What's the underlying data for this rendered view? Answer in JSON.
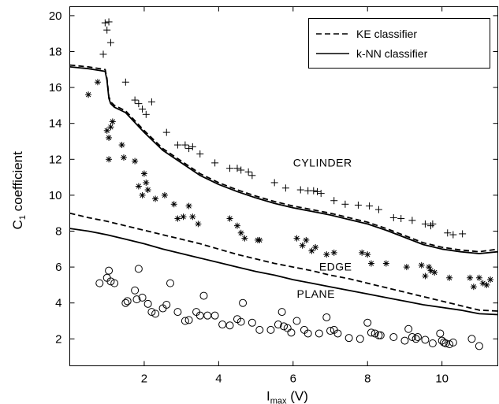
{
  "chart_data": {
    "type": "scatter",
    "xlabel": "I",
    "xlabel_sub": "max",
    "xlabel_unit": " (V)",
    "ylabel": "C",
    "ylabel_sub": "1",
    "ylabel_rest": " coefficient",
    "xlim": [
      0,
      11.5
    ],
    "ylim": [
      0.5,
      20.5
    ],
    "xticks": [
      2,
      4,
      6,
      8,
      10
    ],
    "yticks": [
      2,
      4,
      6,
      8,
      10,
      12,
      14,
      16,
      18,
      20
    ],
    "grid": false,
    "legend_position": "top-right",
    "legend": [
      {
        "label": "KE classifier",
        "style": "dashed"
      },
      {
        "label": "k-NN classifier",
        "style": "solid"
      }
    ],
    "annotations": [
      {
        "text": "CYLINDER",
        "x": 6.0,
        "y": 11.6
      },
      {
        "text": "EDGE",
        "x": 6.7,
        "y": 5.8
      },
      {
        "text": "PLANE",
        "x": 6.1,
        "y": 4.3
      }
    ],
    "series": [
      {
        "name": "KE classifier",
        "kind": "line",
        "style": "dashed",
        "x": [
          0,
          0.5,
          1.0,
          1.5,
          2.0,
          2.5,
          3.0,
          3.5,
          4.0,
          4.5,
          5.0,
          5.5,
          6.0,
          6.5,
          7.0,
          7.5,
          8.0,
          8.5,
          9.0,
          9.5,
          10.0,
          10.5,
          11.0,
          11.5
        ],
        "y": [
          9.0,
          8.75,
          8.55,
          8.3,
          8.05,
          7.8,
          7.55,
          7.3,
          7.0,
          6.7,
          6.45,
          6.2,
          6.0,
          5.8,
          5.55,
          5.35,
          5.1,
          4.85,
          4.6,
          4.35,
          4.1,
          3.85,
          3.6,
          3.55
        ]
      },
      {
        "name": "k-NN classifier",
        "kind": "line",
        "style": "solid",
        "x": [
          0,
          0.5,
          1.0,
          1.5,
          2.0,
          2.5,
          3.0,
          3.5,
          4.0,
          4.5,
          5.0,
          5.5,
          6.0,
          6.5,
          7.0,
          7.5,
          8.0,
          8.5,
          9.0,
          9.5,
          10.0,
          10.5,
          11.0,
          11.5
        ],
        "y": [
          8.15,
          8.0,
          7.8,
          7.55,
          7.3,
          7.0,
          6.75,
          6.5,
          6.25,
          6.0,
          5.75,
          5.55,
          5.3,
          5.1,
          4.9,
          4.7,
          4.5,
          4.3,
          4.1,
          3.9,
          3.75,
          3.6,
          3.4,
          3.35
        ]
      },
      {
        "name": "KE cylinder boundary",
        "kind": "line",
        "style": "dashed",
        "x": [
          0,
          0.5,
          0.95,
          1.0,
          1.05,
          1.1,
          1.2,
          1.5,
          2.0,
          2.5,
          3.0,
          3.5,
          4.0,
          4.5,
          5.0,
          5.5,
          6.0,
          6.5,
          7.0,
          7.5,
          8.0,
          8.5,
          9.0,
          9.5,
          10.0,
          10.5,
          11.0,
          11.5
        ],
        "y": [
          17.25,
          17.15,
          17.0,
          16.5,
          15.5,
          15.2,
          15.0,
          14.7,
          13.6,
          12.6,
          11.9,
          11.2,
          10.7,
          10.3,
          9.95,
          9.65,
          9.4,
          9.2,
          9.0,
          8.75,
          8.5,
          8.15,
          7.75,
          7.35,
          7.1,
          6.95,
          6.85,
          7.0
        ]
      },
      {
        "name": "k-NN cylinder boundary",
        "kind": "line",
        "style": "solid",
        "x": [
          0,
          0.5,
          0.95,
          1.0,
          1.05,
          1.1,
          1.2,
          1.5,
          2.0,
          2.5,
          3.0,
          3.5,
          4.0,
          4.5,
          5.0,
          5.5,
          6.0,
          6.5,
          7.0,
          7.5,
          8.0,
          8.5,
          9.0,
          9.5,
          10.0,
          10.5,
          11.0,
          11.5
        ],
        "y": [
          17.15,
          17.05,
          16.9,
          16.4,
          15.4,
          15.1,
          14.9,
          14.6,
          13.5,
          12.5,
          11.8,
          11.1,
          10.6,
          10.2,
          9.85,
          9.55,
          9.3,
          9.1,
          8.9,
          8.65,
          8.4,
          8.05,
          7.65,
          7.25,
          7.0,
          6.85,
          6.75,
          6.85
        ]
      },
      {
        "name": "cylinder",
        "kind": "points",
        "marker": "plus",
        "x": [
          0.95,
          1.0,
          1.05,
          0.9,
          1.1,
          1.5,
          1.75,
          1.85,
          1.95,
          2.05,
          2.2,
          2.6,
          2.9,
          3.1,
          3.2,
          3.3,
          3.5,
          3.9,
          4.3,
          4.5,
          4.6,
          4.8,
          4.9,
          5.5,
          5.8,
          6.2,
          6.4,
          6.55,
          6.65,
          6.75,
          7.1,
          7.4,
          7.75,
          8.05,
          8.3,
          8.7,
          8.9,
          9.2,
          9.55,
          9.7,
          9.75,
          10.15,
          10.3,
          10.55
        ],
        "y": [
          19.6,
          19.2,
          19.65,
          17.85,
          18.5,
          16.3,
          15.3,
          15.1,
          14.8,
          14.5,
          15.2,
          13.5,
          12.8,
          12.8,
          12.6,
          12.7,
          12.3,
          11.8,
          11.5,
          11.5,
          11.4,
          11.3,
          11.1,
          10.7,
          10.4,
          10.3,
          10.25,
          10.25,
          10.2,
          10.1,
          9.7,
          9.5,
          9.45,
          9.4,
          9.2,
          8.75,
          8.7,
          8.6,
          8.4,
          8.3,
          8.4,
          7.9,
          7.8,
          7.85
        ]
      },
      {
        "name": "edge",
        "kind": "points",
        "marker": "star",
        "x": [
          0.5,
          0.75,
          1.0,
          1.05,
          1.1,
          1.15,
          1.05,
          1.4,
          1.45,
          1.75,
          1.85,
          1.95,
          2.0,
          2.05,
          2.1,
          2.3,
          2.55,
          2.8,
          2.9,
          3.05,
          3.2,
          3.3,
          3.45,
          4.3,
          4.5,
          4.6,
          4.7,
          5.05,
          5.1,
          6.1,
          6.25,
          6.35,
          6.5,
          6.6,
          6.9,
          7.1,
          7.85,
          8.0,
          8.1,
          8.5,
          9.05,
          9.45,
          9.55,
          9.65,
          9.7,
          9.8,
          10.2,
          10.75,
          10.85,
          11.0,
          11.1,
          11.2,
          11.3
        ],
        "y": [
          15.6,
          16.3,
          13.6,
          13.2,
          13.8,
          14.1,
          12.0,
          12.8,
          12.1,
          11.9,
          10.5,
          10.0,
          11.2,
          10.7,
          10.3,
          9.8,
          10.0,
          9.5,
          8.7,
          8.8,
          9.4,
          8.8,
          8.4,
          8.7,
          8.3,
          7.9,
          7.6,
          7.5,
          7.5,
          7.6,
          7.2,
          7.5,
          6.9,
          7.1,
          6.7,
          6.8,
          6.8,
          6.7,
          6.2,
          6.2,
          6.0,
          6.1,
          5.5,
          6.0,
          5.8,
          5.7,
          5.4,
          5.4,
          4.9,
          5.4,
          5.1,
          5.0,
          5.3
        ]
      },
      {
        "name": "plane",
        "kind": "points",
        "marker": "circle",
        "x": [
          0.8,
          1.0,
          1.05,
          1.1,
          1.2,
          1.5,
          1.55,
          1.75,
          1.8,
          1.85,
          1.95,
          2.1,
          2.2,
          2.3,
          2.5,
          2.6,
          2.7,
          2.9,
          3.1,
          3.2,
          3.4,
          3.5,
          3.6,
          3.7,
          3.9,
          4.1,
          4.3,
          4.5,
          4.6,
          4.65,
          4.9,
          5.1,
          5.4,
          5.6,
          5.7,
          5.75,
          5.85,
          5.95,
          6.1,
          6.3,
          6.4,
          6.7,
          6.9,
          7.0,
          7.1,
          7.2,
          7.5,
          7.8,
          8.0,
          8.1,
          8.2,
          8.3,
          8.35,
          8.7,
          9.0,
          9.1,
          9.2,
          9.3,
          9.35,
          9.55,
          9.75,
          9.95,
          10.0,
          10.05,
          10.1,
          10.2,
          10.3,
          10.8,
          11.0
        ],
        "y": [
          5.1,
          5.4,
          5.8,
          5.2,
          5.1,
          4.0,
          4.1,
          4.7,
          4.2,
          5.9,
          4.3,
          3.95,
          3.5,
          3.4,
          3.7,
          3.9,
          5.1,
          3.5,
          3.0,
          3.05,
          3.5,
          3.3,
          4.4,
          3.3,
          3.3,
          2.8,
          2.75,
          3.1,
          2.95,
          4.0,
          2.9,
          2.5,
          2.5,
          2.8,
          3.5,
          2.7,
          2.6,
          2.35,
          3.0,
          2.5,
          2.3,
          2.3,
          3.2,
          2.45,
          2.5,
          2.3,
          2.05,
          2.0,
          2.9,
          2.35,
          2.3,
          2.2,
          2.2,
          2.1,
          1.9,
          2.55,
          2.1,
          2.0,
          2.1,
          1.95,
          1.75,
          2.3,
          1.9,
          1.8,
          1.75,
          1.7,
          1.8,
          2.0,
          1.6
        ]
      }
    ]
  }
}
